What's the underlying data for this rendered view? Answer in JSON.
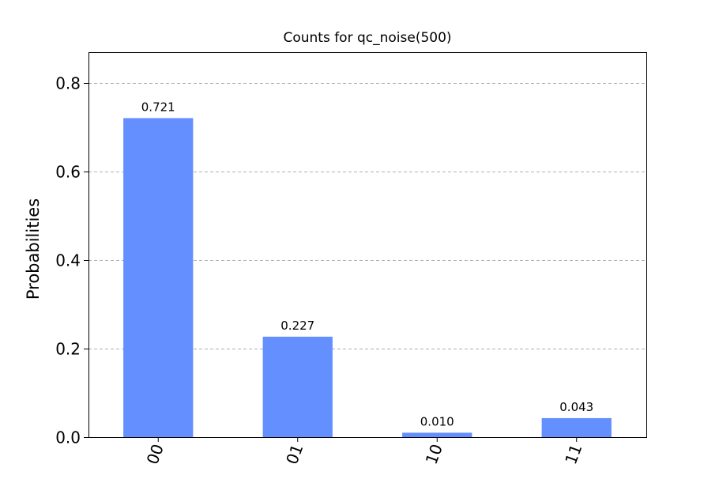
{
  "chart_data": {
    "type": "bar",
    "title": "Counts for qc_noise(500)",
    "xlabel": "",
    "ylabel": "Probabilities",
    "categories": [
      "00",
      "01",
      "10",
      "11"
    ],
    "values": [
      0.721,
      0.227,
      0.01,
      0.043
    ],
    "value_labels": [
      "0.721",
      "0.227",
      "0.010",
      "0.043"
    ],
    "ylim": [
      0,
      0.87
    ],
    "yticks": [
      0.0,
      0.2,
      0.4,
      0.6,
      0.8
    ],
    "ytick_labels": [
      "0.0",
      "0.2",
      "0.4",
      "0.6",
      "0.8"
    ],
    "x_tick_rotation_deg": 70,
    "grid": "horizontal dashed",
    "bar_color": "#648fff",
    "grid_color": "#b0b0b0"
  }
}
